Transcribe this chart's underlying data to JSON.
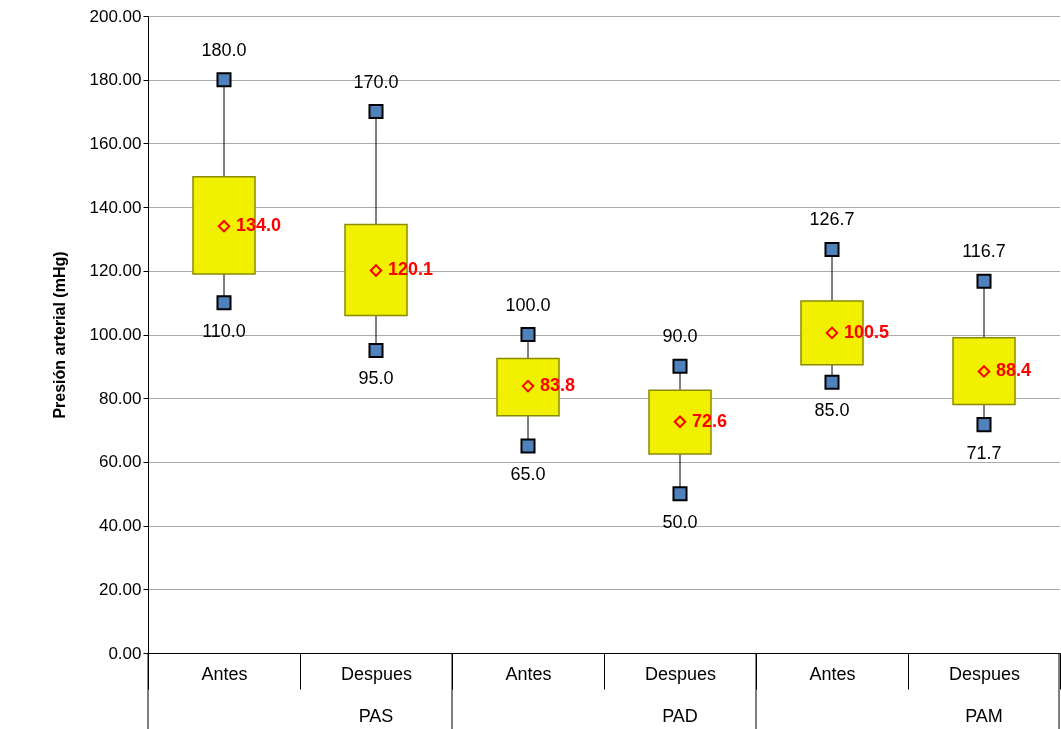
{
  "chart_data": {
    "type": "box",
    "ylabel": "Presión arterial (mHg)",
    "categories": [
      "Antes",
      "Despues",
      "Antes",
      "Despues",
      "Antes",
      "Despues"
    ],
    "annotations": [
      "PAS",
      "PAD",
      "PAM"
    ],
    "ylim": [
      0,
      200
    ],
    "yticks": [
      {
        "value": 0,
        "label": "0.00"
      },
      {
        "value": 20,
        "label": "20.00"
      },
      {
        "value": 40,
        "label": "40.00"
      },
      {
        "value": 60,
        "label": "60.00"
      },
      {
        "value": 80,
        "label": "80.00"
      },
      {
        "value": 100,
        "label": "100.00"
      },
      {
        "value": 120,
        "label": "120.00"
      },
      {
        "value": 140,
        "label": "140.00"
      },
      {
        "value": 160,
        "label": "160.00"
      },
      {
        "value": 180,
        "label": "180.00"
      },
      {
        "value": 200,
        "label": "200.00"
      }
    ],
    "grid": "y",
    "series": [
      {
        "type": "box",
        "color": "#f0f000",
        "boxes": [
          {
            "low": 110,
            "q1": 119,
            "q3": 149.5,
            "high": 180
          },
          {
            "low": 95,
            "q1": 106,
            "q3": 134.5,
            "high": 170
          },
          {
            "low": 65,
            "q1": 74.5,
            "q3": 92.5,
            "high": 100
          },
          {
            "low": 50,
            "q1": 62.5,
            "q3": 82.5,
            "high": 90
          },
          {
            "low": 85,
            "q1": 90.5,
            "q3": 110.5,
            "high": 126.7
          },
          {
            "low": 71.7,
            "q1": 78,
            "q3": 99,
            "high": 116.7
          }
        ]
      },
      {
        "type": "scatter",
        "color": "#4f81bd",
        "marker": "square",
        "values": [
          110,
          95,
          65,
          50,
          85,
          71.7
        ],
        "value_labels": [
          "110.0",
          "95.0",
          "65.0",
          "50.0",
          "85.0",
          "71.7"
        ]
      },
      {
        "type": "scatter",
        "color": "#4f81bd",
        "marker": "square",
        "values": [
          180,
          170,
          100,
          90,
          126.7,
          116.7
        ],
        "value_labels": [
          "180.0",
          "170.0",
          "100.0",
          "90.0",
          "126.7",
          "116.7"
        ]
      },
      {
        "type": "scatter",
        "color": "#ff0000",
        "marker": "diamond",
        "values": [
          134.0,
          120.1,
          83.8,
          72.6,
          100.5,
          88.4
        ],
        "value_labels": [
          "134.0",
          "120.1",
          "83.8",
          "72.6",
          "100.5",
          "88.4"
        ]
      }
    ]
  }
}
